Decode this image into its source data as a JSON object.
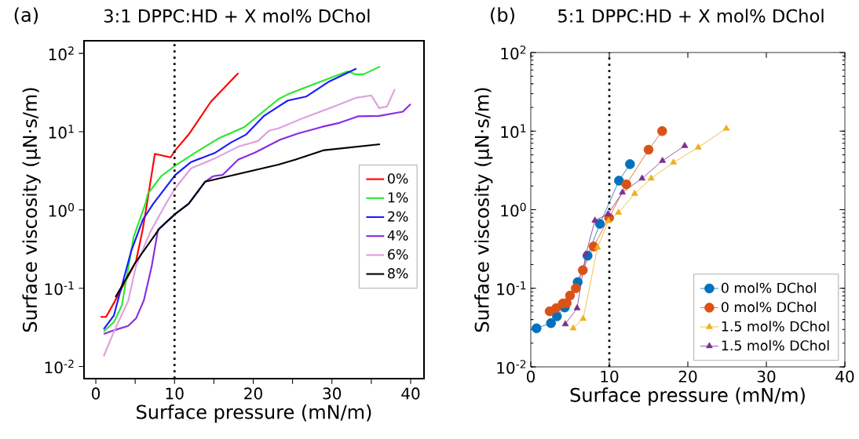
{
  "chart_data": [
    {
      "type": "line",
      "title": "3:1 DPPC:HD + X mol% DChol",
      "annotations": [
        "(a)"
      ],
      "xlabel": "Surface pressure (mN/m)",
      "ylabel": "Surface viscosity (μN·s/m)",
      "log": "y",
      "legend": "right",
      "xlim": [
        -1.5,
        41.7
      ],
      "ylim": [
        0.007,
        145
      ],
      "xticks": [
        0,
        {
          "value": 5,
          "label": null
        },
        10,
        {
          "value": 15,
          "label": null
        },
        20,
        {
          "value": 25,
          "label": null
        },
        30,
        {
          "value": 35,
          "label": null
        },
        40
      ],
      "yticks": [
        {
          "value": 0.01,
          "label": "10$^{-2}$"
        },
        {
          "value": 0.1,
          "label": "10$^{-1}$"
        },
        {
          "value": 1,
          "label": "10$^{0}$"
        },
        {
          "value": 10,
          "label": "10$^{1}$"
        },
        {
          "value": 100,
          "label": "10$^{2}$"
        }
      ],
      "ref_lines": [
        {
          "axis": "x",
          "value": 10,
          "line_style": "dotted",
          "color": "#000000"
        }
      ],
      "series": [
        {
          "name": "0%",
          "color": "#ff0000",
          "x": [
            0.6,
            1.3,
            2.3,
            5.1,
            5.95,
            6.5,
            7.5,
            9.5,
            10.1,
            11.9,
            14.6,
            18.1
          ],
          "values": [
            0.043,
            0.043,
            0.065,
            0.22,
            0.56,
            1.2,
            5.2,
            4.7,
            5.8,
            9.5,
            24,
            56
          ]
        },
        {
          "name": "1%",
          "color": "#2ee62e",
          "x": [
            1.0,
            2.3,
            3.3,
            4.8,
            6.3,
            6.6,
            8.3,
            10.1,
            12.9,
            15.6,
            18.9,
            23.2,
            24.4,
            26.7,
            32,
            33,
            34,
            36.1
          ],
          "values": [
            0.028,
            0.037,
            0.06,
            0.45,
            1.2,
            1.6,
            2.7,
            3.7,
            5.6,
            8.2,
            11.5,
            26,
            30,
            37,
            59,
            54,
            54,
            68
          ]
        },
        {
          "name": "2%",
          "color": "#1a1aff",
          "x": [
            1.0,
            2.3,
            4.5,
            6.0,
            7.3,
            10.1,
            12.1,
            15.2,
            17.2,
            19.1,
            21.4,
            23.2,
            24.4,
            26.7,
            29.7,
            33.1
          ],
          "values": [
            0.03,
            0.045,
            0.3,
            0.76,
            1.2,
            2.8,
            4.1,
            5.4,
            7.3,
            9.2,
            16,
            21,
            25,
            28,
            44,
            64
          ]
        },
        {
          "name": "4%",
          "color": "#8a2be2",
          "x": [
            1.0,
            2.3,
            4.1,
            5.1,
            6.1,
            7.1,
            7.9,
            8.8,
            10.1,
            11.8,
            13.9,
            14.9,
            16.1,
            18.1,
            20.2,
            23.4,
            25.7,
            28.7,
            31.0,
            33.3,
            36.0,
            39.0,
            40.0
          ],
          "values": [
            0.026,
            0.029,
            0.033,
            0.041,
            0.07,
            0.19,
            0.56,
            0.68,
            0.89,
            1.2,
            2.3,
            2.7,
            2.8,
            4.4,
            5.4,
            7.9,
            9.5,
            11.5,
            13,
            15.7,
            15.9,
            18,
            22.5
          ]
        },
        {
          "name": "6%",
          "color": "#dda0dd",
          "x": [
            1.0,
            2.3,
            4.1,
            5.1,
            6.9,
            8.9,
            10.1,
            12.1,
            15.2,
            18.2,
            20.6,
            22.0,
            23.2,
            26.4,
            30.3,
            33.0,
            35.0,
            36.0,
            37.0,
            38.0
          ],
          "values": [
            0.0135,
            0.028,
            0.068,
            0.19,
            0.52,
            1.2,
            1.9,
            3.4,
            4.6,
            6.5,
            7.6,
            10.3,
            11,
            15,
            21,
            27,
            29,
            20,
            21,
            35
          ]
        },
        {
          "name": "8%",
          "color": "#000000",
          "x": [
            2.5,
            5.0,
            8.1,
            10.1,
            11.8,
            13.9,
            23.2,
            25.4,
            29.0,
            36.1
          ],
          "values": [
            0.077,
            0.21,
            0.58,
            0.89,
            1.2,
            2.3,
            3.8,
            4.4,
            5.8,
            6.9
          ]
        }
      ]
    },
    {
      "type": "line",
      "title": "5:1 DPPC:HD + X mol% DChol",
      "annotations": [
        "(b)"
      ],
      "xlabel": "Surface pressure (mN/m)",
      "ylabel": "Surface viscosity (μN·s/m)",
      "log": "y",
      "legend": "bottom right",
      "xlim": [
        0,
        40
      ],
      "ylim": [
        0.01,
        100
      ],
      "xticks": [
        0,
        10,
        20,
        30,
        40
      ],
      "yticks": [
        {
          "value": 0.01,
          "label": "10$^{-2}$"
        },
        {
          "value": 0.1,
          "label": "10$^{-1}$"
        },
        {
          "value": 1,
          "label": "10$^{0}$"
        },
        {
          "value": 10,
          "label": "10$^{1}$"
        },
        {
          "value": 100,
          "label": "10$^{2}$"
        }
      ],
      "ref_lines": [
        {
          "axis": "x",
          "value": 10,
          "line_style": "dotted",
          "color": "#000000"
        }
      ],
      "series": [
        {
          "name": "0 mol% DChol",
          "color": "#0072bd",
          "marker": "circle",
          "x": [
            0.73,
            2.57,
            3.33,
            4.33,
            5.97,
            7.23,
            8.8,
            11.23,
            12.63
          ],
          "values": [
            0.031,
            0.036,
            0.044,
            0.057,
            0.12,
            0.26,
            0.66,
            2.34,
            3.8
          ]
        },
        {
          "name": "0 mol% DChol",
          "color": "#d95319",
          "marker": "circle",
          "x": [
            2.4,
            3.23,
            4.07,
            4.57,
            5.0,
            5.73,
            6.63,
            8.0,
            9.97,
            12.17,
            15.0,
            16.73
          ],
          "values": [
            0.051,
            0.056,
            0.064,
            0.065,
            0.081,
            0.1,
            0.17,
            0.34,
            0.79,
            2.1,
            5.8,
            10
          ]
        },
        {
          "name": "1.5 mol% DChol",
          "color": "#edb120",
          "marker": "triangle",
          "x": [
            5.4,
            6.67,
            8.5,
            9.9,
            11.17,
            13.23,
            15.33,
            18.17,
            21.33,
            24.9
          ],
          "values": [
            0.031,
            0.041,
            0.33,
            0.72,
            0.92,
            1.6,
            2.5,
            4.0,
            6.2,
            10.8
          ]
        },
        {
          "name": "1.5 mol% DChol",
          "color": "#7e2f8e",
          "marker": "triangle",
          "x": [
            4.4,
            5.9,
            7.0,
            8.17,
            9.83,
            11.67,
            14.17,
            16.77,
            19.6
          ],
          "values": [
            0.035,
            0.056,
            0.27,
            0.73,
            0.88,
            1.66,
            2.5,
            4.2,
            6.5
          ]
        }
      ]
    }
  ]
}
